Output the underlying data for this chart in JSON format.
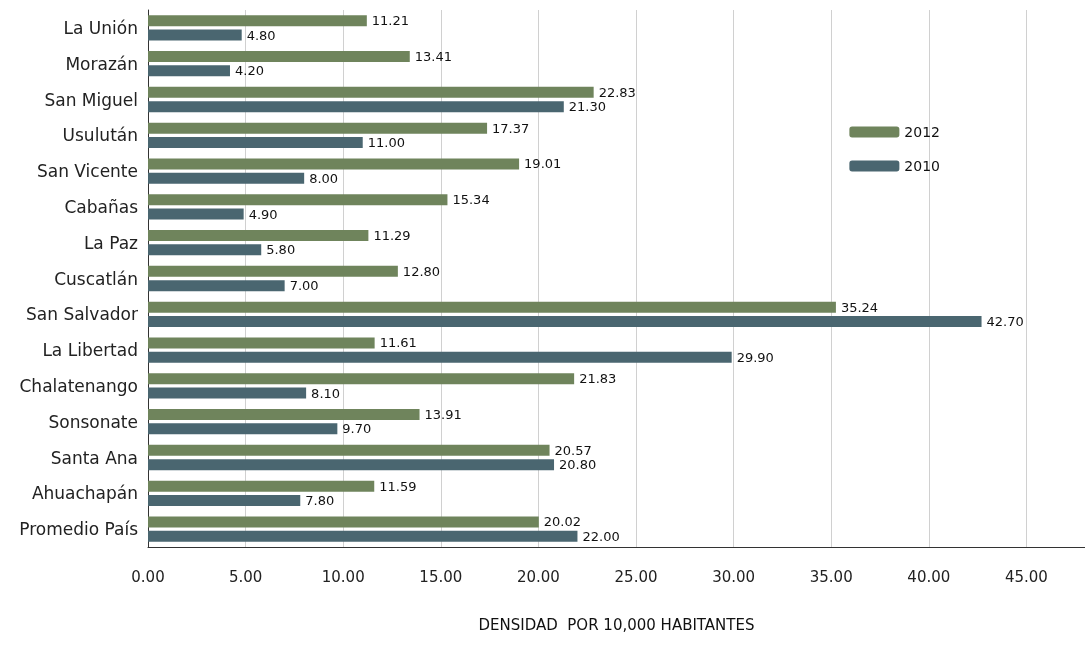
{
  "chart_data": {
    "type": "bar",
    "orientation": "horizontal",
    "xlabel": "DENSIDAD  POR 10,000 HABITANTES",
    "categories": [
      "La Unión",
      "Morazán",
      "San Miguel",
      "Usulután",
      "San Vicente",
      "Cabañas",
      "La Paz",
      "Cuscatlán",
      "San Salvador",
      "La Libertad",
      "Chalatenango",
      "Sonsonate",
      "Santa Ana",
      "Ahuachapán",
      "Promedio País"
    ],
    "series": [
      {
        "name": "2012",
        "color": "#6f845c",
        "values": [
          11.21,
          13.41,
          22.83,
          17.37,
          19.01,
          15.34,
          11.29,
          12.8,
          35.24,
          11.61,
          21.83,
          13.91,
          20.57,
          11.59,
          20.02
        ],
        "value_labels": [
          "11.21",
          "13.41",
          "22.83",
          "17.37",
          "19.01",
          "15.34",
          "11.29",
          "12.80",
          "35.24",
          "11.61",
          "21.83",
          "13.91",
          "20.57",
          "11.59",
          "20.02"
        ]
      },
      {
        "name": "2010",
        "color": "#4a6670",
        "values": [
          4.8,
          4.2,
          21.3,
          11,
          8,
          4.9,
          5.8,
          7,
          42.7,
          29.9,
          8.1,
          9.7,
          20.8,
          7.8,
          22
        ],
        "value_labels": [
          "4.80",
          "4.20",
          "21.30",
          "11.00",
          "8.00",
          "4.90",
          "5.80",
          "7.00",
          "42.70",
          "29.90",
          "8.10",
          "9.70",
          "20.80",
          "7.80",
          "22.00"
        ]
      }
    ],
    "xlim": [
      0,
      48
    ],
    "xticks": [
      {
        "value": 0,
        "label": "0.00"
      },
      {
        "value": 5,
        "label": "5.00"
      },
      {
        "value": 10,
        "label": "10.00"
      },
      {
        "value": 15,
        "label": "15.00"
      },
      {
        "value": 20,
        "label": "20.00"
      },
      {
        "value": 25,
        "label": "25.00"
      },
      {
        "value": 30,
        "label": "30.00"
      },
      {
        "value": 35,
        "label": "35.00"
      },
      {
        "value": 40,
        "label": "40.00"
      },
      {
        "value": 45,
        "label": "45.00"
      }
    ],
    "grid": "x",
    "legend": "top right"
  }
}
